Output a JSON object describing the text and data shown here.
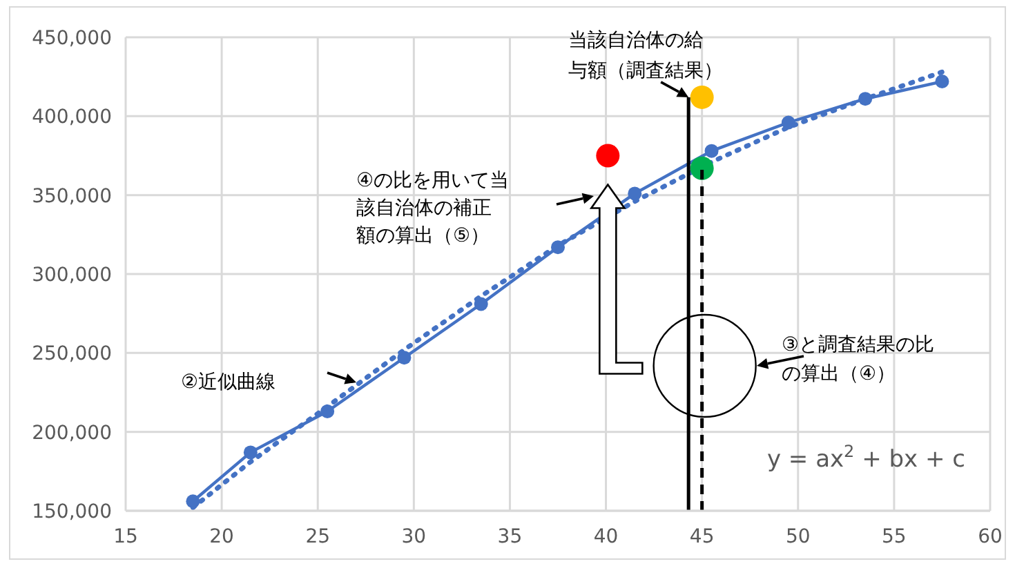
{
  "chart_data": {
    "type": "line",
    "xlim": [
      15,
      60
    ],
    "xticks": [
      15,
      20,
      25,
      30,
      35,
      40,
      45,
      50,
      55,
      60
    ],
    "ylim": [
      150000,
      450000
    ],
    "yticks": [
      {
        "value": 150000,
        "label": "150,000"
      },
      {
        "value": 200000,
        "label": "200,000"
      },
      {
        "value": 250000,
        "label": "250,000"
      },
      {
        "value": 300000,
        "label": "300,000"
      },
      {
        "value": 350000,
        "label": "350,000"
      },
      {
        "value": 400000,
        "label": "400,000"
      },
      {
        "value": 450000,
        "label": "450,000"
      }
    ],
    "grid": true,
    "series": [
      {
        "type": "line",
        "color": "#4472c4",
        "marker": "circle",
        "line_style": "solid",
        "x": [
          18.5,
          21.5,
          25.5,
          29.5,
          33.5,
          37.5,
          41.5,
          45.5,
          49.5,
          53.5,
          57.5
        ],
        "values": [
          156000,
          187000,
          213000,
          247000,
          281000,
          317000,
          351000,
          378000,
          396000,
          411000,
          422000
        ]
      },
      {
        "type": "line",
        "color": "#4472c4",
        "marker": "none",
        "line_style": "dotted",
        "x": [
          18.5,
          21.5,
          25.5,
          29.5,
          33.5,
          37.5,
          41.5,
          45.5,
          49.5,
          53.5,
          57.5
        ],
        "values": [
          152000,
          181000,
          216000,
          252000,
          286000,
          318000,
          346000,
          371000,
          393000,
          411000,
          428000
        ]
      },
      {
        "type": "scatter",
        "color": "#ff0000",
        "marker": "circle",
        "x": [
          40.1
        ],
        "values": [
          375000
        ]
      },
      {
        "type": "scatter",
        "color": "#ffc000",
        "marker": "circle",
        "x": [
          45
        ],
        "values": [
          412000
        ]
      },
      {
        "type": "scatter",
        "color": "#00b050",
        "marker": "circle",
        "x": [
          45
        ],
        "values": [
          367000
        ]
      },
      {
        "type": "line",
        "color": "#000000",
        "marker": "none",
        "line_style": "solid",
        "x": [
          44.3,
          44.3
        ],
        "values": [
          150000,
          412000
        ]
      },
      {
        "type": "line",
        "color": "#000000",
        "marker": "none",
        "line_style": "dashed",
        "x": [
          45,
          45
        ],
        "values": [
          150000,
          367000
        ]
      }
    ],
    "annotations": [
      {
        "text": "当該自治体の給与額（調査結果）",
        "x": 44.3,
        "y": 412000
      },
      "④の比を用いて当該自治体の補正額の算出（⑤）",
      "③と調査結果の比の算出（④）",
      "②近似曲線",
      "y = ax$^{2}$ + bx + c"
    ]
  }
}
